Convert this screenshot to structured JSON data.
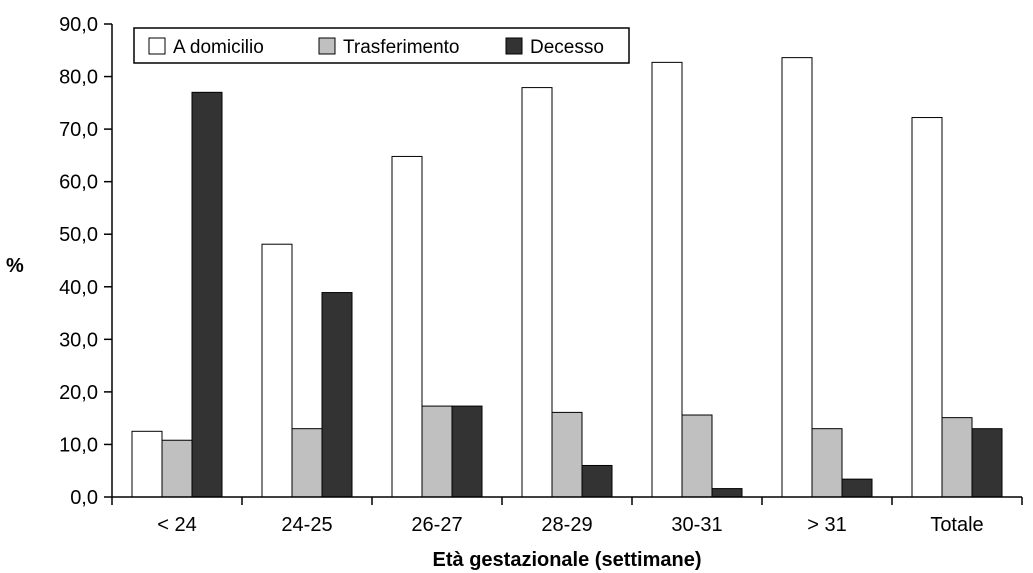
{
  "chart_data": {
    "type": "bar",
    "title": "",
    "xlabel": "Età gestazionale (settimane)",
    "ylabel": "%",
    "ylim": [
      0,
      90
    ],
    "yticks": [
      "0,0",
      "10,0",
      "20,0",
      "30,0",
      "40,0",
      "50,0",
      "60,0",
      "70,0",
      "80,0",
      "90,0"
    ],
    "grid": false,
    "legend_position": "top-left",
    "categories": [
      "< 24",
      "24-25",
      "26-27",
      "28-29",
      "30-31",
      "> 31",
      "Totale"
    ],
    "series": [
      {
        "name": "A domicilio",
        "color": "#ffffff",
        "values": [
          12.5,
          48.1,
          64.8,
          77.9,
          82.7,
          83.6,
          72.2
        ]
      },
      {
        "name": "Trasferimento",
        "color": "#c0c0c0",
        "values": [
          10.8,
          13.0,
          17.3,
          16.1,
          15.6,
          13.0,
          15.1
        ]
      },
      {
        "name": "Decesso",
        "color": "#333333",
        "values": [
          77.0,
          38.9,
          17.3,
          6.0,
          1.6,
          3.4,
          13.0
        ]
      }
    ]
  }
}
